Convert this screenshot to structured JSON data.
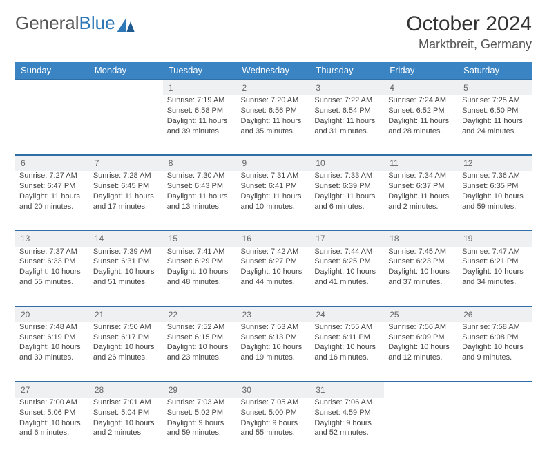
{
  "brand": {
    "part1": "General",
    "part2": "Blue"
  },
  "title": "October 2024",
  "location": "Marktbreit, Germany",
  "colors": {
    "header_bg": "#3a84c4",
    "rule": "#2f6fa6",
    "daynum_bg": "#eef0f2",
    "text": "#444444",
    "title": "#333333"
  },
  "weekdays": [
    "Sunday",
    "Monday",
    "Tuesday",
    "Wednesday",
    "Thursday",
    "Friday",
    "Saturday"
  ],
  "weeks": [
    {
      "nums": [
        "",
        "",
        "1",
        "2",
        "3",
        "4",
        "5"
      ],
      "cells": [
        null,
        null,
        {
          "sr": "7:19 AM",
          "ss": "6:58 PM",
          "dl": "11 hours and 39 minutes."
        },
        {
          "sr": "7:20 AM",
          "ss": "6:56 PM",
          "dl": "11 hours and 35 minutes."
        },
        {
          "sr": "7:22 AM",
          "ss": "6:54 PM",
          "dl": "11 hours and 31 minutes."
        },
        {
          "sr": "7:24 AM",
          "ss": "6:52 PM",
          "dl": "11 hours and 28 minutes."
        },
        {
          "sr": "7:25 AM",
          "ss": "6:50 PM",
          "dl": "11 hours and 24 minutes."
        }
      ]
    },
    {
      "nums": [
        "6",
        "7",
        "8",
        "9",
        "10",
        "11",
        "12"
      ],
      "cells": [
        {
          "sr": "7:27 AM",
          "ss": "6:47 PM",
          "dl": "11 hours and 20 minutes."
        },
        {
          "sr": "7:28 AM",
          "ss": "6:45 PM",
          "dl": "11 hours and 17 minutes."
        },
        {
          "sr": "7:30 AM",
          "ss": "6:43 PM",
          "dl": "11 hours and 13 minutes."
        },
        {
          "sr": "7:31 AM",
          "ss": "6:41 PM",
          "dl": "11 hours and 10 minutes."
        },
        {
          "sr": "7:33 AM",
          "ss": "6:39 PM",
          "dl": "11 hours and 6 minutes."
        },
        {
          "sr": "7:34 AM",
          "ss": "6:37 PM",
          "dl": "11 hours and 2 minutes."
        },
        {
          "sr": "7:36 AM",
          "ss": "6:35 PM",
          "dl": "10 hours and 59 minutes."
        }
      ]
    },
    {
      "nums": [
        "13",
        "14",
        "15",
        "16",
        "17",
        "18",
        "19"
      ],
      "cells": [
        {
          "sr": "7:37 AM",
          "ss": "6:33 PM",
          "dl": "10 hours and 55 minutes."
        },
        {
          "sr": "7:39 AM",
          "ss": "6:31 PM",
          "dl": "10 hours and 51 minutes."
        },
        {
          "sr": "7:41 AM",
          "ss": "6:29 PM",
          "dl": "10 hours and 48 minutes."
        },
        {
          "sr": "7:42 AM",
          "ss": "6:27 PM",
          "dl": "10 hours and 44 minutes."
        },
        {
          "sr": "7:44 AM",
          "ss": "6:25 PM",
          "dl": "10 hours and 41 minutes."
        },
        {
          "sr": "7:45 AM",
          "ss": "6:23 PM",
          "dl": "10 hours and 37 minutes."
        },
        {
          "sr": "7:47 AM",
          "ss": "6:21 PM",
          "dl": "10 hours and 34 minutes."
        }
      ]
    },
    {
      "nums": [
        "20",
        "21",
        "22",
        "23",
        "24",
        "25",
        "26"
      ],
      "cells": [
        {
          "sr": "7:48 AM",
          "ss": "6:19 PM",
          "dl": "10 hours and 30 minutes."
        },
        {
          "sr": "7:50 AM",
          "ss": "6:17 PM",
          "dl": "10 hours and 26 minutes."
        },
        {
          "sr": "7:52 AM",
          "ss": "6:15 PM",
          "dl": "10 hours and 23 minutes."
        },
        {
          "sr": "7:53 AM",
          "ss": "6:13 PM",
          "dl": "10 hours and 19 minutes."
        },
        {
          "sr": "7:55 AM",
          "ss": "6:11 PM",
          "dl": "10 hours and 16 minutes."
        },
        {
          "sr": "7:56 AM",
          "ss": "6:09 PM",
          "dl": "10 hours and 12 minutes."
        },
        {
          "sr": "7:58 AM",
          "ss": "6:08 PM",
          "dl": "10 hours and 9 minutes."
        }
      ]
    },
    {
      "nums": [
        "27",
        "28",
        "29",
        "30",
        "31",
        "",
        ""
      ],
      "cells": [
        {
          "sr": "7:00 AM",
          "ss": "5:06 PM",
          "dl": "10 hours and 6 minutes."
        },
        {
          "sr": "7:01 AM",
          "ss": "5:04 PM",
          "dl": "10 hours and 2 minutes."
        },
        {
          "sr": "7:03 AM",
          "ss": "5:02 PM",
          "dl": "9 hours and 59 minutes."
        },
        {
          "sr": "7:05 AM",
          "ss": "5:00 PM",
          "dl": "9 hours and 55 minutes."
        },
        {
          "sr": "7:06 AM",
          "ss": "4:59 PM",
          "dl": "9 hours and 52 minutes."
        },
        null,
        null
      ]
    }
  ],
  "labels": {
    "sunrise": "Sunrise: ",
    "sunset": "Sunset: ",
    "daylight": "Daylight: "
  }
}
